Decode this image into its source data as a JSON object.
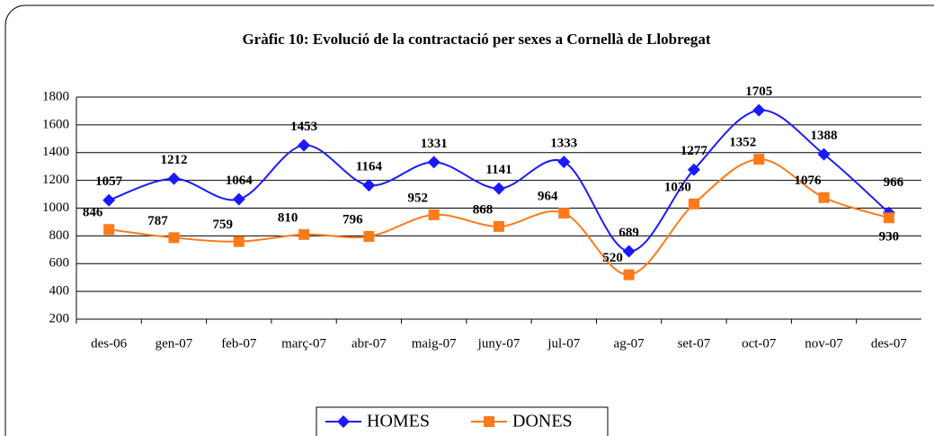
{
  "chart_data": {
    "type": "line",
    "title": "Gràfic 10: Evolució de la contractació per sexes a Cornellà de Llobregat",
    "categories": [
      "des-06",
      "gen-07",
      "feb-07",
      "març-07",
      "abr-07",
      "maig-07",
      "juny-07",
      "jul-07",
      "ag-07",
      "set-07",
      "oct-07",
      "nov-07",
      "des-07"
    ],
    "series": [
      {
        "name": "HOMES",
        "color": "#1a1aff",
        "marker": "diamond",
        "values": [
          1057,
          1212,
          1064,
          1453,
          1164,
          1331,
          1141,
          1333,
          689,
          1277,
          1705,
          1388,
          966
        ]
      },
      {
        "name": "DONES",
        "color": "#ff7a1a",
        "marker": "square",
        "values": [
          846,
          787,
          759,
          810,
          796,
          952,
          868,
          964,
          520,
          1030,
          1352,
          1076,
          930
        ]
      }
    ],
    "ylim": [
      200,
      1800
    ],
    "yticks": [
      200,
      400,
      600,
      800,
      1000,
      1200,
      1400,
      1600,
      1800
    ],
    "grid": true,
    "smooth": true,
    "legend": "bottom"
  }
}
